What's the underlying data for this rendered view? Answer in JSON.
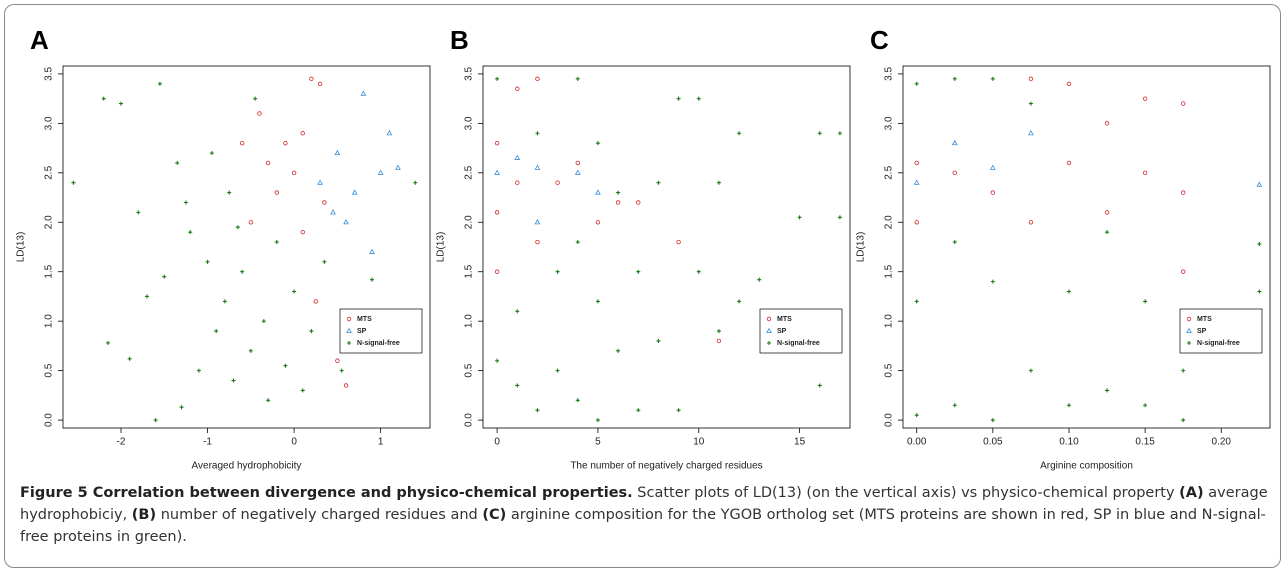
{
  "chart_data": [
    {
      "type": "scatter",
      "panel_label": "A",
      "xlabel": "Averaged hydrophobicity",
      "ylabel": "LD(13)",
      "xlim": [
        -2.67,
        1.57
      ],
      "ylim": [
        -0.08,
        3.58
      ],
      "xticks": [
        -2,
        -1,
        0,
        1
      ],
      "yticks": [
        {
          "value": 0,
          "label": "0.0"
        },
        {
          "value": 0.5,
          "label": "0.5"
        },
        {
          "value": 1,
          "label": "1.0"
        },
        {
          "value": 1.5,
          "label": "1.5"
        },
        {
          "value": 2,
          "label": "2.0"
        },
        {
          "value": 2.5,
          "label": "2.5"
        },
        {
          "value": 3,
          "label": "3.0"
        },
        {
          "value": 3.5,
          "label": "3.5"
        }
      ],
      "legend": "lower right",
      "series": [
        {
          "name": "MTS",
          "color": "#d62728",
          "marker": "circle",
          "x": [
            -0.6,
            -0.4,
            -0.3,
            -0.2,
            0.0,
            0.1,
            0.2,
            0.3,
            0.25,
            0.5,
            -0.5,
            0.1,
            0.6,
            -0.1,
            0.35
          ],
          "values": [
            2.8,
            3.1,
            2.6,
            2.3,
            2.5,
            2.9,
            3.45,
            3.4,
            1.2,
            0.6,
            2.0,
            1.9,
            0.35,
            2.8,
            2.2
          ]
        },
        {
          "name": "SP",
          "color": "#3a8fd9",
          "marker": "triangle",
          "x": [
            0.3,
            0.5,
            0.6,
            0.8,
            1.0,
            1.1,
            0.7,
            0.9,
            1.2,
            0.45
          ],
          "values": [
            2.4,
            2.7,
            2.0,
            3.3,
            2.5,
            2.9,
            2.3,
            1.7,
            2.55,
            2.1
          ]
        },
        {
          "name": "N-signal-free",
          "color": "#1a7a1a",
          "marker": "plus",
          "x": [
            -2.55,
            -2.2,
            -2.0,
            -1.9,
            -2.15,
            -1.8,
            -1.7,
            -1.6,
            -1.55,
            -1.5,
            -1.35,
            -1.3,
            -1.2,
            -1.1,
            -1.0,
            -0.95,
            -0.9,
            -0.8,
            -0.75,
            -0.7,
            -0.6,
            -0.5,
            -0.45,
            -0.35,
            -0.3,
            -0.2,
            -0.1,
            0.0,
            0.1,
            0.2,
            0.35,
            0.55,
            0.9,
            -1.25,
            -0.65,
            1.4
          ],
          "values": [
            2.4,
            3.25,
            3.2,
            0.62,
            0.78,
            2.1,
            1.25,
            0.0,
            3.4,
            1.45,
            2.6,
            0.13,
            1.9,
            0.5,
            1.6,
            2.7,
            0.9,
            1.2,
            2.3,
            0.4,
            1.5,
            0.7,
            3.25,
            1.0,
            0.2,
            1.8,
            0.55,
            1.3,
            0.3,
            0.9,
            1.6,
            0.5,
            1.42,
            2.2,
            1.95,
            2.4
          ]
        }
      ]
    },
    {
      "type": "scatter",
      "panel_label": "B",
      "xlabel": "The number of negatively charged residues",
      "ylabel": "LD(13)",
      "xlim": [
        -0.7,
        17.5
      ],
      "ylim": [
        -0.08,
        3.58
      ],
      "xticks": [
        0,
        5,
        10,
        15
      ],
      "yticks": [
        {
          "value": 0,
          "label": "0.0"
        },
        {
          "value": 0.5,
          "label": "0.5"
        },
        {
          "value": 1,
          "label": "1.0"
        },
        {
          "value": 1.5,
          "label": "1.5"
        },
        {
          "value": 2,
          "label": "2.0"
        },
        {
          "value": 2.5,
          "label": "2.5"
        },
        {
          "value": 3,
          "label": "3.0"
        },
        {
          "value": 3.5,
          "label": "3.5"
        }
      ],
      "legend": "lower right",
      "series": [
        {
          "name": "MTS",
          "color": "#d62728",
          "marker": "circle",
          "x": [
            0,
            0,
            0,
            1,
            1,
            2,
            2,
            3,
            4,
            5,
            6,
            7,
            9,
            11,
            16
          ],
          "values": [
            2.1,
            2.8,
            1.5,
            3.35,
            2.4,
            3.45,
            1.8,
            2.4,
            2.6,
            2.0,
            2.2,
            2.2,
            1.8,
            0.8,
            1.05
          ]
        },
        {
          "name": "SP",
          "color": "#3a8fd9",
          "marker": "triangle",
          "x": [
            0,
            1,
            2,
            4,
            5,
            2
          ],
          "values": [
            2.5,
            2.65,
            2.55,
            2.5,
            2.3,
            2.0
          ]
        },
        {
          "name": "N-signal-free",
          "color": "#1a7a1a",
          "marker": "plus",
          "x": [
            0,
            0,
            1,
            1,
            2,
            2,
            3,
            3,
            4,
            4,
            4,
            5,
            5,
            5,
            6,
            6,
            7,
            7,
            8,
            8,
            9,
            9,
            10,
            10,
            11,
            11,
            12,
            12,
            13,
            15,
            16,
            16,
            17,
            17
          ],
          "values": [
            3.45,
            0.6,
            1.1,
            0.35,
            0.1,
            2.9,
            1.5,
            0.5,
            3.45,
            0.2,
            1.8,
            0.0,
            2.8,
            1.2,
            2.3,
            0.7,
            1.5,
            0.1,
            2.4,
            0.8,
            3.25,
            0.1,
            3.25,
            1.5,
            2.4,
            0.9,
            2.9,
            1.2,
            1.42,
            2.05,
            0.35,
            2.9,
            2.05,
            2.9
          ]
        }
      ]
    },
    {
      "type": "scatter",
      "panel_label": "C",
      "xlabel": "Arginine composition",
      "ylabel": "LD(13)",
      "xlim": [
        -0.009,
        0.232
      ],
      "ylim": [
        -0.08,
        3.58
      ],
      "xticks": [
        {
          "value": 0,
          "label": "0.00"
        },
        {
          "value": 0.05,
          "label": "0.05"
        },
        {
          "value": 0.1,
          "label": "0.10"
        },
        {
          "value": 0.15,
          "label": "0.15"
        },
        {
          "value": 0.2,
          "label": "0.20"
        }
      ],
      "yticks": [
        {
          "value": 0,
          "label": "0.0"
        },
        {
          "value": 0.5,
          "label": "0.5"
        },
        {
          "value": 1,
          "label": "1.0"
        },
        {
          "value": 1.5,
          "label": "1.5"
        },
        {
          "value": 2,
          "label": "2.0"
        },
        {
          "value": 2.5,
          "label": "2.5"
        },
        {
          "value": 3,
          "label": "3.0"
        },
        {
          "value": 3.5,
          "label": "3.5"
        }
      ],
      "legend": "lower right",
      "series": [
        {
          "name": "MTS",
          "color": "#d62728",
          "marker": "circle",
          "x": [
            0,
            0,
            0.025,
            0.05,
            0.075,
            0.075,
            0.1,
            0.1,
            0.125,
            0.125,
            0.15,
            0.15,
            0.175,
            0.175,
            0.175
          ],
          "values": [
            2.6,
            2.0,
            2.5,
            2.3,
            3.45,
            2.0,
            3.4,
            2.6,
            3.0,
            2.1,
            3.25,
            2.5,
            3.2,
            2.3,
            1.5
          ]
        },
        {
          "name": "SP",
          "color": "#3a8fd9",
          "marker": "triangle",
          "x": [
            0,
            0.025,
            0.075,
            0.05,
            0.225
          ],
          "values": [
            2.4,
            2.8,
            2.9,
            2.55,
            2.38
          ]
        },
        {
          "name": "N-signal-free",
          "color": "#1a7a1a",
          "marker": "plus",
          "x": [
            0,
            0,
            0,
            0.025,
            0.025,
            0.025,
            0.05,
            0.05,
            0.05,
            0.075,
            0.075,
            0.1,
            0.1,
            0.125,
            0.125,
            0.15,
            0.15,
            0.175,
            0.175,
            0.225,
            0.225
          ],
          "values": [
            3.4,
            0.05,
            1.2,
            3.45,
            0.15,
            1.8,
            3.45,
            0.0,
            1.4,
            3.2,
            0.5,
            1.3,
            0.15,
            0.3,
            1.9,
            1.2,
            0.15,
            0.0,
            0.5,
            1.3,
            1.78
          ]
        }
      ]
    }
  ],
  "caption": {
    "title": "Figure 5 Correlation between divergence and physico-chemical properties.",
    "text_1": " Scatter plots of LD(13) (on the vertical axis) vs physico-chemical property ",
    "label_a": "(A)",
    "text_2": " average hydrophobiciy, ",
    "label_b": "(B)",
    "text_3": " number of negatively charged residues and ",
    "label_c": "(C)",
    "text_4": " arginine composition for the YGOB ortholog set (MTS proteins are shown in red, SP in blue and N-signal-free proteins in green)."
  }
}
